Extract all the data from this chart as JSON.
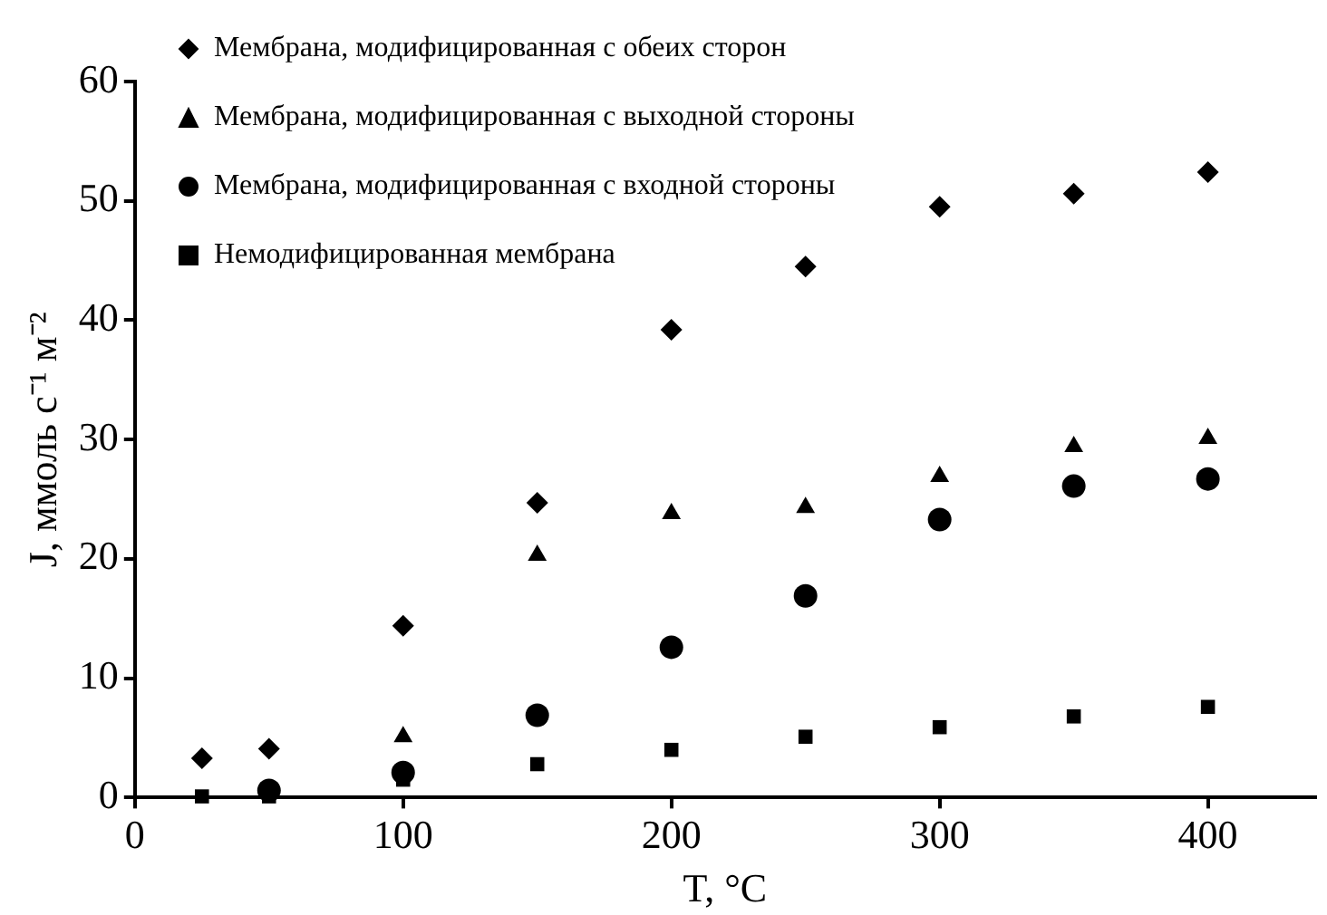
{
  "chart_data": {
    "type": "scatter",
    "xlabel": "T, °C",
    "ylabel": "J, ммоль с⁻¹ м⁻²",
    "x": [
      25,
      50,
      100,
      150,
      200,
      250,
      300,
      350,
      400
    ],
    "series": [
      {
        "name": "Мембрана, модифицированная с обеих сторон",
        "color": "#000000",
        "marker": "diamond",
        "values": [
          3.3,
          4.1,
          14.4,
          24.7,
          39.2,
          44.5,
          49.5,
          50.6,
          52.4
        ]
      },
      {
        "name": "Мембрана, модифицированная с выходной стороны",
        "color": "#000000",
        "marker": "triangle",
        "values": [
          null,
          null,
          5.1,
          20.3,
          23.8,
          24.3,
          26.9,
          29.4,
          30.1
        ]
      },
      {
        "name": "Мембрана, модифицированная с входной стороны",
        "color": "#000000",
        "marker": "circle",
        "values": [
          null,
          0.6,
          2.1,
          6.9,
          12.6,
          16.9,
          23.3,
          26.1,
          26.7
        ]
      },
      {
        "name": "Немодифицированная мембрана",
        "color": "#000000",
        "marker": "square",
        "values": [
          0.1,
          0.1,
          1.5,
          2.8,
          4.0,
          5.1,
          5.9,
          6.8,
          7.6
        ]
      }
    ],
    "xlim": [
      0,
      440
    ],
    "xticks": [
      0,
      100,
      200,
      300,
      400
    ],
    "ylim": [
      0,
      60
    ],
    "yticks": [
      0,
      10,
      20,
      30,
      40,
      50,
      60
    ],
    "grid": false,
    "legend": "top left"
  }
}
